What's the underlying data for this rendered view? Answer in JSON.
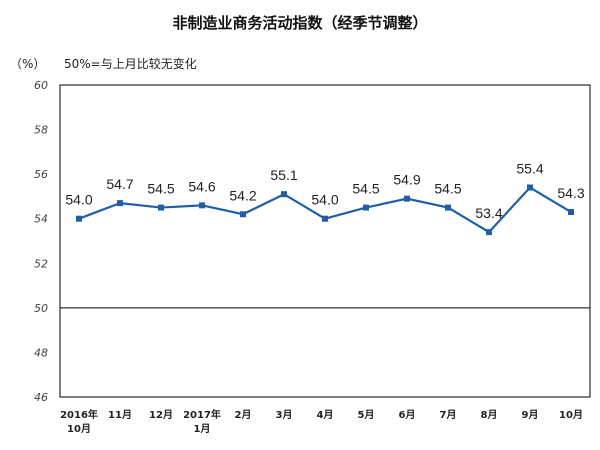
{
  "chart_data": {
    "type": "line",
    "title": "非制造业商务活动指数（经季节调整）",
    "unit_label": "（%）",
    "reference_note": "50%=与上月比较无变化",
    "reference_value": 50,
    "categories": [
      [
        "2016年",
        "10月"
      ],
      [
        "11月"
      ],
      [
        "12月"
      ],
      [
        "2017年",
        "1月"
      ],
      [
        "2月"
      ],
      [
        "3月"
      ],
      [
        "4月"
      ],
      [
        "5月"
      ],
      [
        "6月"
      ],
      [
        "7月"
      ],
      [
        "8月"
      ],
      [
        "9月"
      ],
      [
        "10月"
      ]
    ],
    "series": [
      {
        "values": [
          54.0,
          54.7,
          54.5,
          54.6,
          54.2,
          55.1,
          54.0,
          54.5,
          54.9,
          54.5,
          53.4,
          55.4,
          54.3
        ],
        "data_labels": [
          "54.0",
          "54.7",
          "54.5",
          "54.6",
          "54.2",
          "55.1",
          "54.0",
          "54.5",
          "54.9",
          "54.5",
          "53.4",
          "55.4",
          "54.3"
        ],
        "color": "#1f5fa8"
      }
    ],
    "yticks": [
      "60",
      "58",
      "56",
      "54",
      "52",
      "50",
      "48",
      "46"
    ],
    "ylim": [
      46,
      60
    ],
    "grid": false,
    "legend": "none"
  }
}
